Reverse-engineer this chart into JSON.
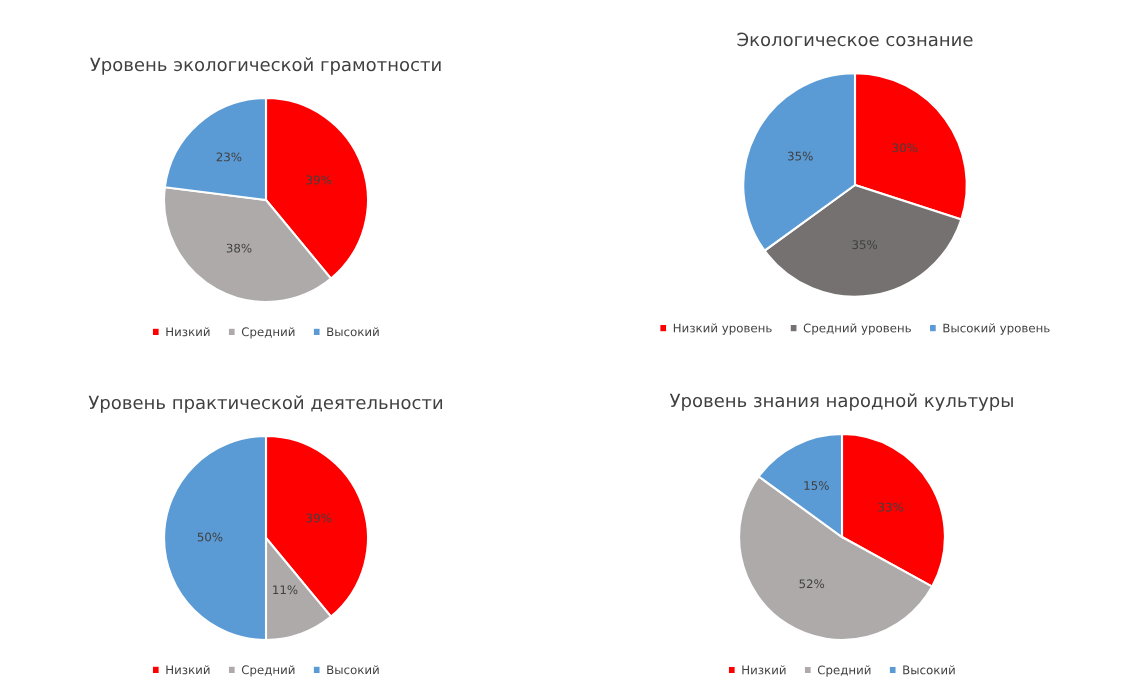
{
  "chart_data": [
    {
      "type": "pie",
      "title": "Уровень экологической грамотности",
      "categories": [
        "Низкий",
        "Средний",
        "Высокий"
      ],
      "values": [
        39,
        38,
        23
      ],
      "value_labels": [
        "39%",
        "38%",
        "23%"
      ],
      "colors": [
        "#ff0000",
        "#aeaaaa",
        "#5b9bd5"
      ],
      "legend": "bottom"
    },
    {
      "type": "pie",
      "title": "Экологическое сознание",
      "categories": [
        "Низкий уровень",
        "Средний уровень",
        "Высокий уровень"
      ],
      "values": [
        30,
        35,
        35
      ],
      "value_labels": [
        "30%",
        "35%",
        "35%"
      ],
      "colors": [
        "#ff0000",
        "#767171",
        "#5b9bd5"
      ],
      "legend": "bottom"
    },
    {
      "type": "pie",
      "title": "Уровень практической деятельности",
      "categories": [
        "Низкий",
        "Средний",
        "Высокий"
      ],
      "values": [
        39,
        11,
        50
      ],
      "value_labels": [
        "39%",
        "11%",
        "50%"
      ],
      "colors": [
        "#ff0000",
        "#aeaaaa",
        "#5b9bd5"
      ],
      "legend": "bottom"
    },
    {
      "type": "pie",
      "title": "Уровень знания народной культуры",
      "categories": [
        "Низкий",
        "Средний",
        "Высокий"
      ],
      "values": [
        33,
        52,
        15
      ],
      "value_labels": [
        "33%",
        "52%",
        "15%"
      ],
      "colors": [
        "#ff0000",
        "#aeaaaa",
        "#5b9bd5"
      ],
      "legend": "bottom"
    }
  ]
}
